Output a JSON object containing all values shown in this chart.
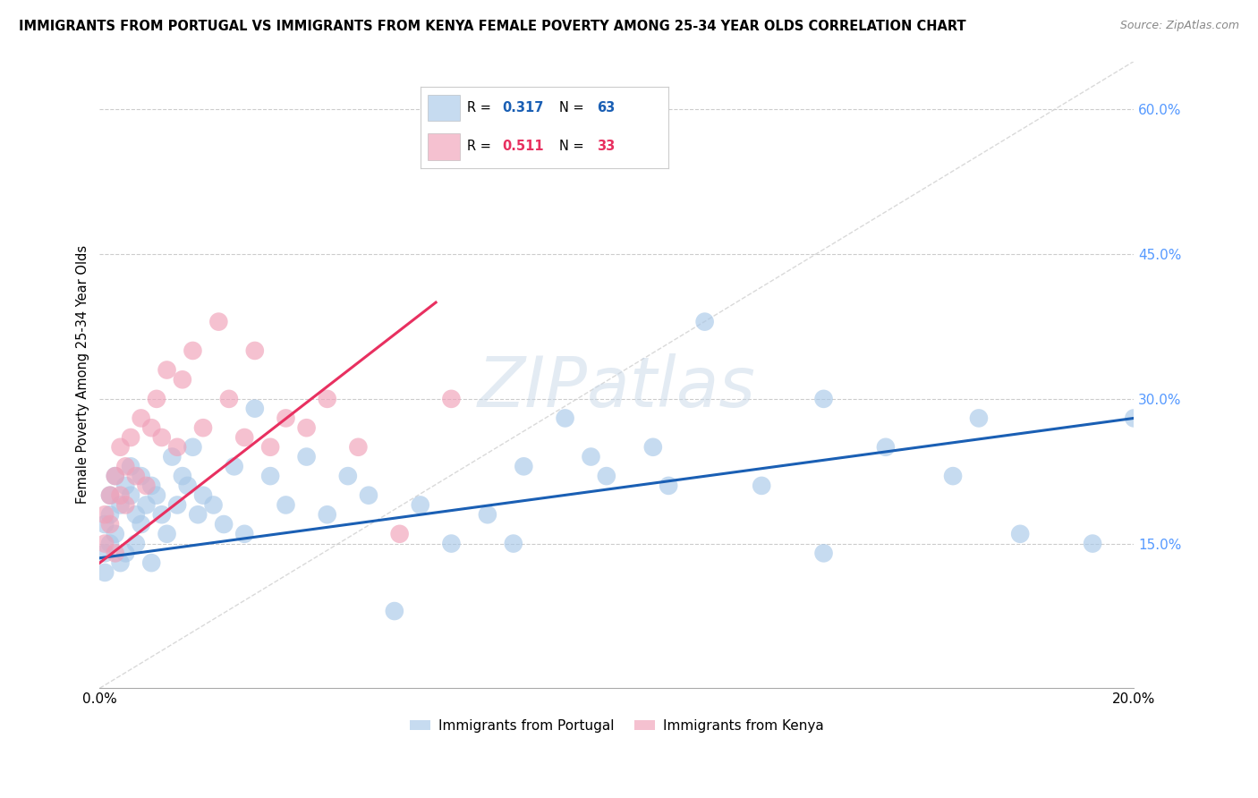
{
  "title": "IMMIGRANTS FROM PORTUGAL VS IMMIGRANTS FROM KENYA FEMALE POVERTY AMONG 25-34 YEAR OLDS CORRELATION CHART",
  "source": "Source: ZipAtlas.com",
  "ylabel": "Female Poverty Among 25-34 Year Olds",
  "xlim": [
    0,
    0.2
  ],
  "ylim": [
    0,
    0.65
  ],
  "y_ticks_right": [
    0.15,
    0.3,
    0.45,
    0.6
  ],
  "y_tick_labels_right": [
    "15.0%",
    "30.0%",
    "45.0%",
    "60.0%"
  ],
  "legend1_R": "0.317",
  "legend1_N": "63",
  "legend2_R": "0.511",
  "legend2_N": "33",
  "color_portugal": "#a8c8e8",
  "color_kenya": "#f0a0b8",
  "line_color_portugal": "#1a5fb4",
  "line_color_kenya": "#e83060",
  "diagonal_color": "#d0d0d0",
  "watermark": "ZIPatlas",
  "portugal_x": [
    0.001,
    0.001,
    0.001,
    0.002,
    0.002,
    0.002,
    0.003,
    0.003,
    0.004,
    0.004,
    0.005,
    0.005,
    0.006,
    0.006,
    0.007,
    0.007,
    0.008,
    0.008,
    0.009,
    0.01,
    0.01,
    0.011,
    0.012,
    0.013,
    0.014,
    0.015,
    0.016,
    0.017,
    0.018,
    0.019,
    0.02,
    0.022,
    0.024,
    0.026,
    0.028,
    0.03,
    0.033,
    0.036,
    0.04,
    0.044,
    0.048,
    0.052,
    0.057,
    0.062,
    0.068,
    0.075,
    0.082,
    0.09,
    0.098,
    0.107,
    0.117,
    0.128,
    0.14,
    0.152,
    0.165,
    0.178,
    0.192,
    0.2,
    0.08,
    0.095,
    0.11,
    0.14,
    0.17
  ],
  "portugal_y": [
    0.14,
    0.17,
    0.12,
    0.15,
    0.18,
    0.2,
    0.16,
    0.22,
    0.19,
    0.13,
    0.21,
    0.14,
    0.2,
    0.23,
    0.18,
    0.15,
    0.22,
    0.17,
    0.19,
    0.21,
    0.13,
    0.2,
    0.18,
    0.16,
    0.24,
    0.19,
    0.22,
    0.21,
    0.25,
    0.18,
    0.2,
    0.19,
    0.17,
    0.23,
    0.16,
    0.29,
    0.22,
    0.19,
    0.24,
    0.18,
    0.22,
    0.2,
    0.08,
    0.19,
    0.15,
    0.18,
    0.23,
    0.28,
    0.22,
    0.25,
    0.38,
    0.21,
    0.3,
    0.25,
    0.22,
    0.16,
    0.15,
    0.28,
    0.15,
    0.24,
    0.21,
    0.14,
    0.28
  ],
  "kenya_x": [
    0.001,
    0.001,
    0.002,
    0.002,
    0.003,
    0.003,
    0.004,
    0.004,
    0.005,
    0.005,
    0.006,
    0.007,
    0.008,
    0.009,
    0.01,
    0.011,
    0.012,
    0.013,
    0.015,
    0.016,
    0.018,
    0.02,
    0.023,
    0.025,
    0.028,
    0.03,
    0.033,
    0.036,
    0.04,
    0.044,
    0.05,
    0.058,
    0.068
  ],
  "kenya_y": [
    0.15,
    0.18,
    0.17,
    0.2,
    0.14,
    0.22,
    0.2,
    0.25,
    0.19,
    0.23,
    0.26,
    0.22,
    0.28,
    0.21,
    0.27,
    0.3,
    0.26,
    0.33,
    0.25,
    0.32,
    0.35,
    0.27,
    0.38,
    0.3,
    0.26,
    0.35,
    0.25,
    0.28,
    0.27,
    0.3,
    0.25,
    0.16,
    0.3
  ]
}
